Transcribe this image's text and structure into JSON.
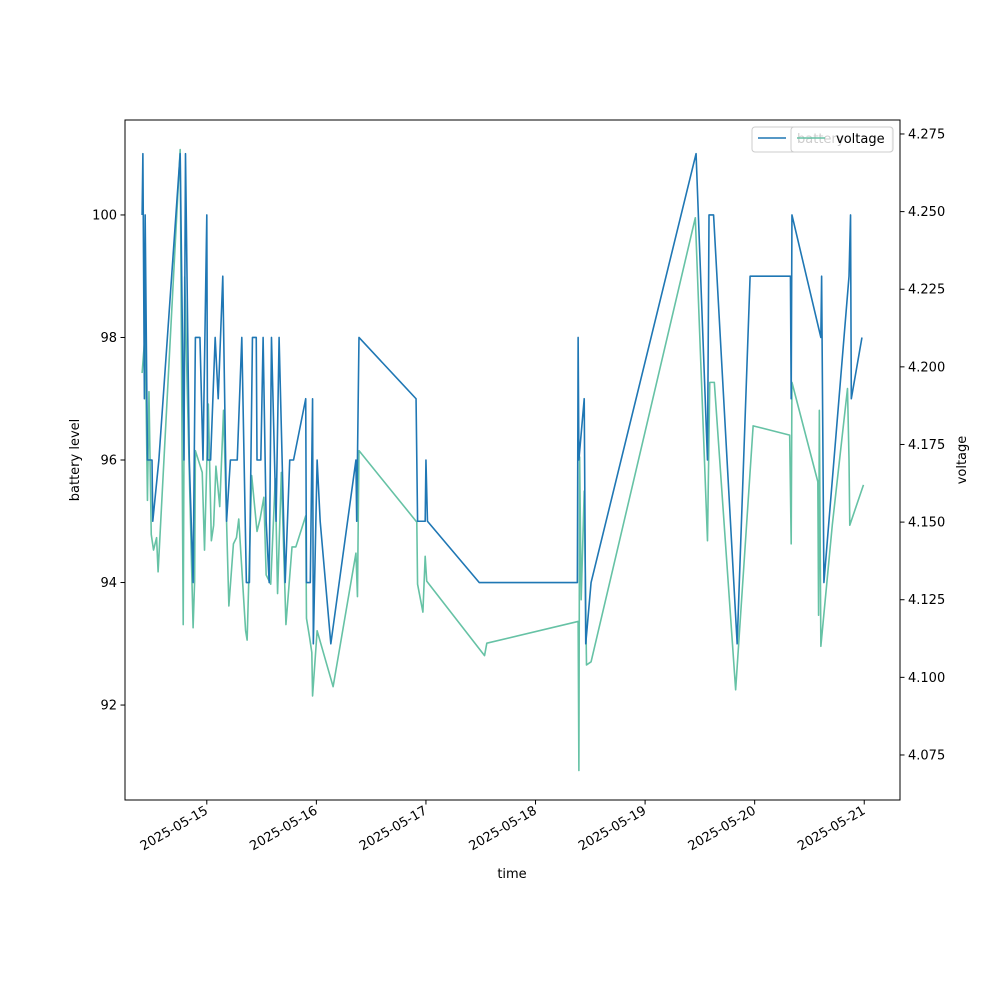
{
  "chart_data": {
    "type": "line",
    "title": "",
    "xlabel": "time",
    "ylabel_left": "battery level",
    "ylabel_right": "voltage",
    "x_ticks": [
      "2025-05-15",
      "2025-05-16",
      "2025-05-17",
      "2025-05-18",
      "2025-05-19",
      "2025-05-20",
      "2025-05-21"
    ],
    "y_left_ticks": [
      "92",
      "94",
      "96",
      "98",
      "100"
    ],
    "y_right_ticks": [
      "4.075",
      "4.100",
      "4.125",
      "4.150",
      "4.175",
      "4.200",
      "4.225",
      "4.250",
      "4.275"
    ],
    "xlim": [
      "2025-05-14 06:05",
      "2025-05-21 07:50"
    ],
    "ylim_left": [
      90.45,
      101.55
    ],
    "ylim_right": [
      4.0605,
      4.2795
    ],
    "grid": false,
    "legend_position": "top-right",
    "legend_entries": [
      "battery",
      "voltage"
    ],
    "series": [
      {
        "name": "battery",
        "axis": "left",
        "color": "#1f77b4",
        "points": [
          [
            "2025-05-14 09:50",
            100
          ],
          [
            "2025-05-14 10:00",
            101
          ],
          [
            "2025-05-14 10:20",
            97
          ],
          [
            "2025-05-14 10:30",
            100
          ],
          [
            "2025-05-14 11:00",
            96
          ],
          [
            "2025-05-14 12:00",
            96
          ],
          [
            "2025-05-14 12:10",
            95
          ],
          [
            "2025-05-14 13:30",
            96
          ],
          [
            "2025-05-14 18:10",
            101
          ],
          [
            "2025-05-14 19:00",
            96
          ],
          [
            "2025-05-14 19:20",
            101
          ],
          [
            "2025-05-14 20:10",
            96
          ],
          [
            "2025-05-14 21:00",
            94
          ],
          [
            "2025-05-14 21:30",
            98
          ],
          [
            "2025-05-14 22:30",
            98
          ],
          [
            "2025-05-14 23:10",
            96
          ],
          [
            "2025-05-15 00:00",
            100
          ],
          [
            "2025-05-15 00:10",
            96
          ],
          [
            "2025-05-15 00:50",
            96
          ],
          [
            "2025-05-15 01:50",
            98
          ],
          [
            "2025-05-15 02:30",
            97
          ],
          [
            "2025-05-15 03:30",
            99
          ],
          [
            "2025-05-15 04:20",
            95
          ],
          [
            "2025-05-15 05:10",
            96
          ],
          [
            "2025-05-15 06:40",
            96
          ],
          [
            "2025-05-15 07:40",
            98
          ],
          [
            "2025-05-15 08:40",
            94
          ],
          [
            "2025-05-15 09:20",
            94
          ],
          [
            "2025-05-15 10:00",
            98
          ],
          [
            "2025-05-15 10:50",
            98
          ],
          [
            "2025-05-15 11:00",
            96
          ],
          [
            "2025-05-15 11:50",
            96
          ],
          [
            "2025-05-15 12:20",
            98
          ],
          [
            "2025-05-15 13:00",
            95
          ],
          [
            "2025-05-15 13:40",
            94
          ],
          [
            "2025-05-15 14:10",
            98
          ],
          [
            "2025-05-15 15:10",
            95
          ],
          [
            "2025-05-15 15:50",
            98
          ],
          [
            "2025-05-15 17:10",
            94
          ],
          [
            "2025-05-15 18:10",
            96
          ],
          [
            "2025-05-15 19:00",
            96
          ],
          [
            "2025-05-15 21:40",
            97
          ],
          [
            "2025-05-15 21:50",
            94
          ],
          [
            "2025-05-15 22:40",
            94
          ],
          [
            "2025-05-15 23:10",
            97
          ],
          [
            "2025-05-15 23:20",
            93
          ],
          [
            "2025-05-16 00:10",
            96
          ],
          [
            "2025-05-16 00:50",
            95
          ],
          [
            "2025-05-16 03:10",
            93
          ],
          [
            "2025-05-16 08:40",
            96
          ],
          [
            "2025-05-16 08:50",
            95
          ],
          [
            "2025-05-16 09:20",
            98
          ],
          [
            "2025-05-16 21:50",
            97
          ],
          [
            "2025-05-16 22:10",
            95
          ],
          [
            "2025-05-16 23:50",
            95
          ],
          [
            "2025-05-17 00:00",
            96
          ],
          [
            "2025-05-17 00:20",
            95
          ],
          [
            "2025-05-17 11:40",
            94
          ],
          [
            "2025-05-18 09:10",
            94
          ],
          [
            "2025-05-18 09:20",
            98
          ],
          [
            "2025-05-18 09:30",
            96
          ],
          [
            "2025-05-18 10:40",
            97
          ],
          [
            "2025-05-18 11:00",
            93
          ],
          [
            "2025-05-18 12:10",
            94
          ],
          [
            "2025-05-19 11:10",
            101
          ],
          [
            "2025-05-19 13:40",
            96
          ],
          [
            "2025-05-19 14:00",
            100
          ],
          [
            "2025-05-19 15:00",
            100
          ],
          [
            "2025-05-19 20:10",
            93
          ],
          [
            "2025-05-19 23:00",
            99
          ],
          [
            "2025-05-20 07:50",
            99
          ],
          [
            "2025-05-20 08:00",
            97
          ],
          [
            "2025-05-20 08:10",
            100
          ],
          [
            "2025-05-20 14:30",
            98
          ],
          [
            "2025-05-20 14:40",
            99
          ],
          [
            "2025-05-20 15:10",
            94
          ],
          [
            "2025-05-20 20:40",
            99
          ],
          [
            "2025-05-20 21:00",
            100
          ],
          [
            "2025-05-20 21:10",
            97
          ],
          [
            "2025-05-20 23:30",
            98
          ]
        ]
      },
      {
        "name": "voltage",
        "axis": "right",
        "color": "#66c2a5",
        "points": [
          [
            "2025-05-14 09:50",
            4.198
          ],
          [
            "2025-05-14 10:30",
            4.211
          ],
          [
            "2025-05-14 11:00",
            4.157
          ],
          [
            "2025-05-14 11:20",
            4.192
          ],
          [
            "2025-05-14 11:50",
            4.146
          ],
          [
            "2025-05-14 12:20",
            4.141
          ],
          [
            "2025-05-14 13:00",
            4.145
          ],
          [
            "2025-05-14 13:20",
            4.134
          ],
          [
            "2025-05-14 18:10",
            4.27
          ],
          [
            "2025-05-14 18:50",
            4.117
          ],
          [
            "2025-05-14 19:10",
            4.229
          ],
          [
            "2025-05-14 19:40",
            4.196
          ],
          [
            "2025-05-14 21:00",
            4.116
          ],
          [
            "2025-05-14 21:20",
            4.131
          ],
          [
            "2025-05-14 21:30",
            4.173
          ],
          [
            "2025-05-14 23:00",
            4.166
          ],
          [
            "2025-05-14 23:30",
            4.141
          ],
          [
            "2025-05-15 00:20",
            4.188
          ],
          [
            "2025-05-15 01:00",
            4.144
          ],
          [
            "2025-05-15 01:30",
            4.149
          ],
          [
            "2025-05-15 02:00",
            4.168
          ],
          [
            "2025-05-15 02:50",
            4.155
          ],
          [
            "2025-05-15 03:40",
            4.186
          ],
          [
            "2025-05-15 04:50",
            4.123
          ],
          [
            "2025-05-15 05:50",
            4.143
          ],
          [
            "2025-05-15 06:30",
            4.145
          ],
          [
            "2025-05-15 07:00",
            4.151
          ],
          [
            "2025-05-15 08:30",
            4.115
          ],
          [
            "2025-05-15 08:50",
            4.112
          ],
          [
            "2025-05-15 09:50",
            4.165
          ],
          [
            "2025-05-15 11:00",
            4.147
          ],
          [
            "2025-05-15 11:40",
            4.151
          ],
          [
            "2025-05-15 12:30",
            4.158
          ],
          [
            "2025-05-15 13:00",
            4.133
          ],
          [
            "2025-05-15 14:00",
            4.13
          ],
          [
            "2025-05-15 15:00",
            4.164
          ],
          [
            "2025-05-15 15:30",
            4.127
          ],
          [
            "2025-05-15 16:20",
            4.166
          ],
          [
            "2025-05-15 17:20",
            4.117
          ],
          [
            "2025-05-15 18:40",
            4.142
          ],
          [
            "2025-05-15 19:30",
            4.142
          ],
          [
            "2025-05-15 21:40",
            4.152
          ],
          [
            "2025-05-15 21:50",
            4.119
          ],
          [
            "2025-05-15 22:30",
            4.113
          ],
          [
            "2025-05-15 23:00",
            4.108
          ],
          [
            "2025-05-15 23:10",
            4.094
          ],
          [
            "2025-05-16 00:10",
            4.115
          ],
          [
            "2025-05-16 03:40",
            4.097
          ],
          [
            "2025-05-16 08:40",
            4.14
          ],
          [
            "2025-05-16 09:00",
            4.126
          ],
          [
            "2025-05-16 09:20",
            4.173
          ],
          [
            "2025-05-16 22:00",
            4.15
          ],
          [
            "2025-05-16 22:10",
            4.13
          ],
          [
            "2025-05-16 23:20",
            4.121
          ],
          [
            "2025-05-16 23:50",
            4.139
          ],
          [
            "2025-05-17 00:10",
            4.131
          ],
          [
            "2025-05-17 12:50",
            4.107
          ],
          [
            "2025-05-17 13:20",
            4.111
          ],
          [
            "2025-05-18 09:20",
            4.118
          ],
          [
            "2025-05-18 09:30",
            4.07
          ],
          [
            "2025-05-18 09:40",
            4.171
          ],
          [
            "2025-05-18 10:00",
            4.125
          ],
          [
            "2025-05-18 10:40",
            4.16
          ],
          [
            "2025-05-18 11:10",
            4.104
          ],
          [
            "2025-05-18 12:10",
            4.105
          ],
          [
            "2025-05-19 11:00",
            4.248
          ],
          [
            "2025-05-19 13:40",
            4.144
          ],
          [
            "2025-05-19 14:10",
            4.195
          ],
          [
            "2025-05-19 15:10",
            4.195
          ],
          [
            "2025-05-19 19:50",
            4.096
          ],
          [
            "2025-05-19 23:40",
            4.181
          ],
          [
            "2025-05-20 07:40",
            4.178
          ],
          [
            "2025-05-20 08:00",
            4.143
          ],
          [
            "2025-05-20 08:10",
            4.195
          ],
          [
            "2025-05-20 13:50",
            4.163
          ],
          [
            "2025-05-20 14:00",
            4.12
          ],
          [
            "2025-05-20 14:10",
            4.186
          ],
          [
            "2025-05-20 14:30",
            4.11
          ],
          [
            "2025-05-20 17:00",
            4.149
          ],
          [
            "2025-05-20 20:20",
            4.193
          ],
          [
            "2025-05-20 20:40",
            4.17
          ],
          [
            "2025-05-20 20:50",
            4.149
          ],
          [
            "2025-05-20 23:50",
            4.162
          ]
        ]
      }
    ]
  }
}
